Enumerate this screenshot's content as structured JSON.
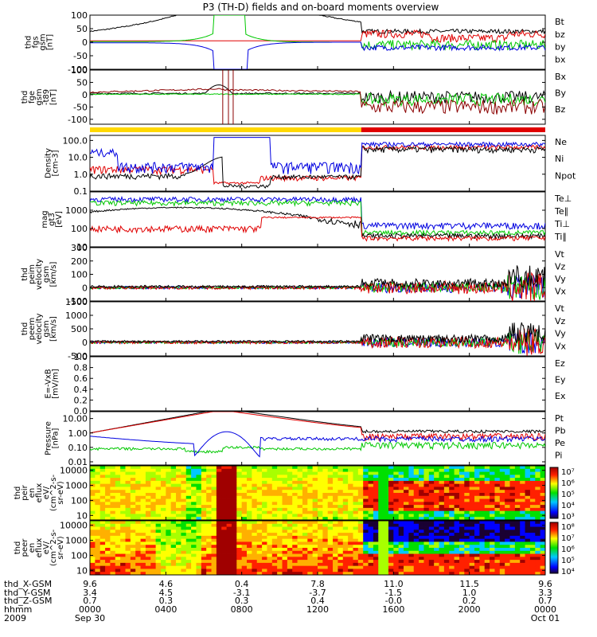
{
  "title": "P3 (TH-D) fields and on-board moments overview",
  "colors": {
    "black": "#000000",
    "red": "#e00000",
    "green": "#00c800",
    "blue": "#0000e0",
    "darkred": "#8b0000",
    "yellow": "#ffd800"
  },
  "chart_data": [
    {
      "type": "line",
      "panel": "fgs",
      "ylabel": [
        "thd",
        "fgs",
        "gsm",
        "[nT]"
      ],
      "yticks": [
        "100",
        "50",
        "0",
        "-50",
        "-100"
      ],
      "ylim": [
        -100,
        100
      ],
      "series": [
        {
          "name": "Bt",
          "color": "black"
        },
        {
          "name": "bz",
          "color": "red"
        },
        {
          "name": "by",
          "color": "green"
        },
        {
          "name": "bx",
          "color": "blue"
        }
      ]
    },
    {
      "type": "line",
      "panel": "fge_t89",
      "ylabel": [
        "thd",
        "fge",
        "gsm",
        "-t89",
        "[nT]"
      ],
      "yticks": [
        "100",
        "50",
        "0",
        "-50",
        "-100"
      ],
      "ylim": [
        -120,
        100
      ],
      "series": [
        {
          "name": "Bx",
          "color": "black"
        },
        {
          "name": "By",
          "color": "green"
        },
        {
          "name": "Bz",
          "color": "darkred"
        }
      ]
    },
    {
      "type": "bar",
      "panel": "mode_bar",
      "segments": [
        {
          "color": "yellow",
          "from_hours": 0,
          "to_hours": 14.3
        },
        {
          "color": "red",
          "from_hours": 14.3,
          "to_hours": 24
        }
      ]
    },
    {
      "type": "line",
      "panel": "density",
      "scale": "log",
      "ylabel": [
        "Density",
        "[cm-3]"
      ],
      "yticks": [
        "100.0",
        "10.0",
        "1.0",
        "0.1"
      ],
      "ylim": [
        0.1,
        200
      ],
      "series": [
        {
          "name": "Ne",
          "color": "red"
        },
        {
          "name": "Ni",
          "color": "black"
        },
        {
          "name": "Npot",
          "color": "blue"
        }
      ]
    },
    {
      "type": "line",
      "panel": "temperature",
      "scale": "log",
      "ylabel": [
        "mag",
        "gt3",
        "[eV]"
      ],
      "yticks": [
        "1000",
        "100",
        "10"
      ],
      "ylim": [
        10,
        10000
      ],
      "series": [
        {
          "name": "Te⊥",
          "color": "red"
        },
        {
          "name": "Te∥",
          "color": "black"
        },
        {
          "name": "Ti⊥",
          "color": "green"
        },
        {
          "name": "Ti∥",
          "color": "green"
        }
      ]
    },
    {
      "type": "line",
      "panel": "peim_velocity",
      "ylabel": [
        "thd",
        "peim",
        "velocity",
        "gsm",
        "[km/s]"
      ],
      "yticks": [
        "300",
        "200",
        "100",
        "0",
        "-100"
      ],
      "ylim": [
        -100,
        300
      ],
      "series": [
        {
          "name": "Vt",
          "color": "black"
        },
        {
          "name": "Vz",
          "color": "red"
        },
        {
          "name": "Vy",
          "color": "green"
        },
        {
          "name": "Vx",
          "color": "blue"
        }
      ]
    },
    {
      "type": "line",
      "panel": "peem_velocity",
      "ylabel": [
        "thd",
        "peem",
        "velocity",
        "gsm",
        "[km/s]"
      ],
      "yticks": [
        "1500",
        "1000",
        "500",
        "0",
        "-500"
      ],
      "ylim": [
        -500,
        1500
      ],
      "series": [
        {
          "name": "Vt",
          "color": "black"
        },
        {
          "name": "Vz",
          "color": "red"
        },
        {
          "name": "Vy",
          "color": "green"
        },
        {
          "name": "Vx",
          "color": "blue"
        }
      ]
    },
    {
      "type": "line",
      "panel": "e_vxb",
      "ylabel": [
        "E=-VxB",
        "[mV/m]"
      ],
      "yticks": [
        "1.0",
        "0.8",
        "0.6",
        "0.4",
        "0.2",
        "0.0"
      ],
      "ylim": [
        0,
        1
      ],
      "series": [
        {
          "name": "Ez",
          "color": "red"
        },
        {
          "name": "Ey",
          "color": "green"
        },
        {
          "name": "Ex",
          "color": "blue"
        }
      ]
    },
    {
      "type": "line",
      "panel": "pressure",
      "scale": "log",
      "ylabel": [
        "Pressure",
        "[nPa]"
      ],
      "yticks": [
        "10.00",
        "1.00",
        "0.10",
        "0.01"
      ],
      "ylim": [
        0.006,
        30
      ],
      "series": [
        {
          "name": "Pt",
          "color": "black"
        },
        {
          "name": "Pb",
          "color": "red"
        },
        {
          "name": "Pe",
          "color": "green"
        },
        {
          "name": "Pi",
          "color": "blue"
        }
      ]
    },
    {
      "type": "heatmap",
      "panel": "peir_eflux",
      "ylabel": [
        "thd",
        "peir",
        "en",
        "eflux",
        "eV/",
        "(cm^2-s-",
        "sr-eV)"
      ],
      "yticks": [
        "10000",
        "1000",
        "100",
        "10"
      ],
      "ylim": [
        5,
        20000
      ],
      "colorbar_ticks": [
        "10⁷",
        "10⁶",
        "10⁵",
        "10⁴",
        "10³"
      ]
    },
    {
      "type": "heatmap",
      "panel": "peer_eflux",
      "ylabel": [
        "thd",
        "peer",
        "en",
        "eflux",
        "eV/",
        "(cm^2-s-",
        "sr-eV)"
      ],
      "yticks": [
        "10000",
        "1000",
        "100",
        "10"
      ],
      "ylim": [
        5,
        20000
      ],
      "colorbar_ticks": [
        "10⁸",
        "10⁷",
        "10⁶",
        "10⁵",
        "10⁴"
      ]
    }
  ],
  "time_axis": {
    "rows": [
      {
        "label": "thd_X-GSM",
        "values": [
          "9.6",
          "4.6",
          "0.4",
          "7.8",
          "11.0",
          "11.5",
          "9.6"
        ]
      },
      {
        "label": "thd_Y-GSM",
        "values": [
          "3.4",
          "4.5",
          "-3.1",
          "-3.7",
          "-1.5",
          "1.0",
          "3.3"
        ]
      },
      {
        "label": "thd_Z-GSM",
        "values": [
          "0.7",
          "0.3",
          "0.3",
          "0.4",
          "-0.0",
          "0.2",
          "0.7"
        ]
      },
      {
        "label": "hhmm",
        "values": [
          "0000",
          "0400",
          "0800",
          "1200",
          "1600",
          "2000",
          "0000"
        ]
      }
    ],
    "year": "2009",
    "start_date": "Sep 30",
    "end_date": "Oct 01"
  }
}
